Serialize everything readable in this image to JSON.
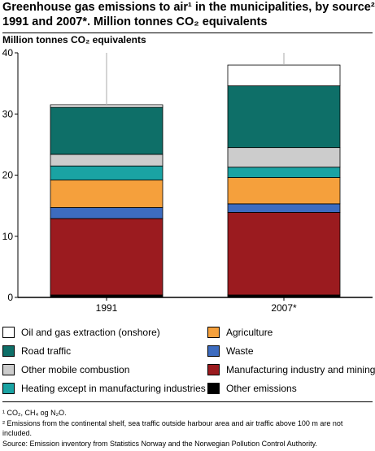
{
  "title": {
    "line1": "Greenhouse gas emissions to air¹ in the municipalities, by source².",
    "line2": "1991 and 2007*. Million tonnes CO₂ equivalents"
  },
  "chart_data": {
    "type": "bar",
    "stacked": true,
    "title": "Greenhouse gas emissions to air¹ in the municipalities, by source². 1991 and 2007*. Million tonnes CO₂ equivalents",
    "ylabel": "Million tonnes CO₂ equivalents",
    "xlabel": "",
    "ylim": [
      0,
      40
    ],
    "yticks": [
      0,
      10,
      20,
      30,
      40
    ],
    "grid": false,
    "categories": [
      "1991",
      "2007*"
    ],
    "series": [
      {
        "name": "Other emissions",
        "color": "#000000",
        "values": [
          0.4,
          0.4
        ]
      },
      {
        "name": "Manufacturing industry and mining",
        "color": "#9b1b1f",
        "values": [
          12.5,
          13.5
        ]
      },
      {
        "name": "Waste",
        "color": "#3d6cc0",
        "values": [
          1.8,
          1.4
        ]
      },
      {
        "name": "Agriculture",
        "color": "#f5a03c",
        "values": [
          4.5,
          4.3
        ]
      },
      {
        "name": "Heating except in manufacturing industries",
        "color": "#1aa3a3",
        "values": [
          2.3,
          1.7
        ]
      },
      {
        "name": "Other mobile combustion",
        "color": "#cccccc",
        "values": [
          1.9,
          3.2
        ]
      },
      {
        "name": "Road traffic",
        "color": "#0e6f68",
        "values": [
          7.7,
          10.1
        ]
      },
      {
        "name": "Oil and gas extraction (onshore)",
        "color": "#ffffff",
        "values": [
          0.4,
          3.4
        ]
      }
    ]
  },
  "legend": [
    {
      "label": "Oil and gas extraction (onshore)",
      "color": "#ffffff"
    },
    {
      "label": "Agriculture",
      "color": "#f5a03c"
    },
    {
      "label": "Road traffic",
      "color": "#0e6f68"
    },
    {
      "label": "Waste",
      "color": "#3d6cc0"
    },
    {
      "label": "Other mobile combustion",
      "color": "#cccccc"
    },
    {
      "label": "Manufacturing industry and mining",
      "color": "#9b1b1f"
    },
    {
      "label": "Heating except in manufacturing industries",
      "color": "#1aa3a3"
    },
    {
      "label": "Other emissions",
      "color": "#000000"
    }
  ],
  "notes": {
    "n1": "¹ CO₂, CH₄ og N₂O.",
    "n2": "² Emissions from the continental shelf, sea traffic outside harbour area and air traffic above 100 m are not included.",
    "source": "Source: Emission inventory from Statistics Norway and the Norwegian Pollution Control Authority."
  }
}
